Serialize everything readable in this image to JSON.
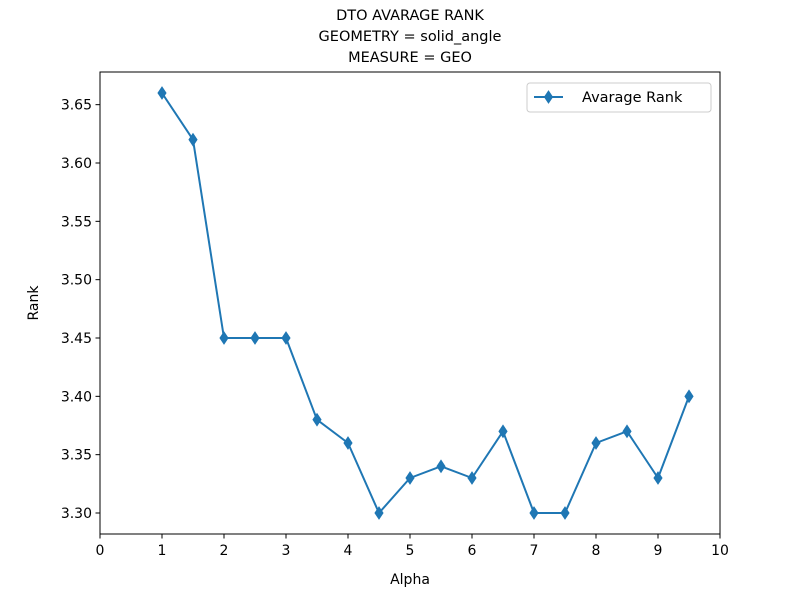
{
  "chart_data": {
    "type": "line",
    "title_lines": [
      "DTO AVARAGE RANK",
      "GEOMETRY = solid_angle",
      "MEASURE = GEO"
    ],
    "xlabel": "Alpha",
    "ylabel": "Rank",
    "xlim": [
      0,
      10
    ],
    "ylim": [
      3.282,
      3.678
    ],
    "x_ticks": [
      0,
      1,
      2,
      3,
      4,
      5,
      6,
      7,
      8,
      9,
      10
    ],
    "y_ticks": [
      "3.30",
      "3.35",
      "3.40",
      "3.45",
      "3.50",
      "3.55",
      "3.60",
      "3.65"
    ],
    "grid": false,
    "legend_position": "top-right",
    "series": [
      {
        "name": "Avarage Rank",
        "color": "#1f77b4",
        "marker": "thin-diamond",
        "x": [
          1,
          1.5,
          2,
          2.5,
          3,
          3.5,
          4,
          4.5,
          5,
          5.5,
          6,
          6.5,
          7,
          7.5,
          8,
          8.5,
          9,
          9.5
        ],
        "y": [
          3.66,
          3.62,
          3.45,
          3.45,
          3.45,
          3.38,
          3.36,
          3.3,
          3.33,
          3.34,
          3.33,
          3.37,
          3.3,
          3.3,
          3.36,
          3.37,
          3.33,
          3.4
        ]
      }
    ]
  }
}
